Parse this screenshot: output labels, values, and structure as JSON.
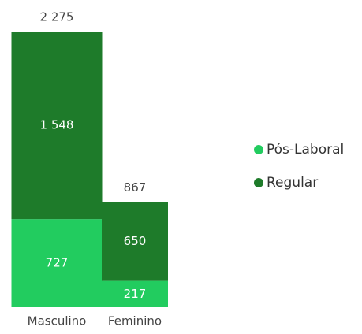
{
  "chart_data": {
    "type": "stacked-bar",
    "categories": [
      "Masculino",
      "Feminino"
    ],
    "series": [
      {
        "name": "Pós-Laboral",
        "color": "#22cc5f",
        "values": [
          727,
          217
        ]
      },
      {
        "name": "Regular",
        "color": "#1e7b2a",
        "values": [
          1548,
          650
        ],
        "value_labels": [
          "1 548",
          "650"
        ]
      }
    ],
    "total_labels": [
      "2 275",
      "867"
    ],
    "ylim": [
      0,
      2275
    ],
    "legend": "right"
  }
}
